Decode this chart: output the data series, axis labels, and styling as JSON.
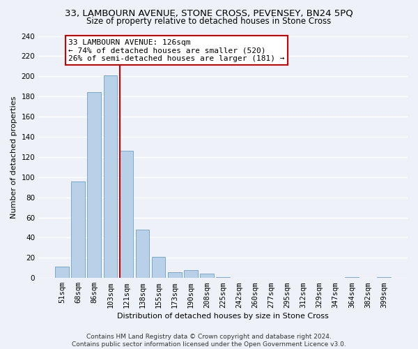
{
  "title": "33, LAMBOURN AVENUE, STONE CROSS, PEVENSEY, BN24 5PQ",
  "subtitle": "Size of property relative to detached houses in Stone Cross",
  "xlabel": "Distribution of detached houses by size in Stone Cross",
  "ylabel": "Number of detached properties",
  "bar_labels": [
    "51sqm",
    "68sqm",
    "86sqm",
    "103sqm",
    "121sqm",
    "138sqm",
    "155sqm",
    "173sqm",
    "190sqm",
    "208sqm",
    "225sqm",
    "242sqm",
    "260sqm",
    "277sqm",
    "295sqm",
    "312sqm",
    "329sqm",
    "347sqm",
    "364sqm",
    "382sqm",
    "399sqm"
  ],
  "bar_heights": [
    11,
    96,
    184,
    201,
    126,
    48,
    21,
    6,
    8,
    4,
    1,
    0,
    0,
    0,
    0,
    0,
    0,
    0,
    1,
    0,
    1
  ],
  "bar_color": "#b8d0e8",
  "bar_edge_color": "#7aaac8",
  "vline_color": "#cc0000",
  "vline_x_index": 4,
  "annotation_text": "33 LAMBOURN AVENUE: 126sqm\n← 74% of detached houses are smaller (520)\n26% of semi-detached houses are larger (181) →",
  "annotation_box_color": "#ffffff",
  "annotation_box_edge": "#cc0000",
  "ylim": [
    0,
    240
  ],
  "yticks": [
    0,
    20,
    40,
    60,
    80,
    100,
    120,
    140,
    160,
    180,
    200,
    220,
    240
  ],
  "footer_text": "Contains HM Land Registry data © Crown copyright and database right 2024.\nContains public sector information licensed under the Open Government Licence v3.0.",
  "background_color": "#eef2f8",
  "grid_color": "#ffffff",
  "title_fontsize": 9.5,
  "subtitle_fontsize": 8.5,
  "axis_label_fontsize": 8,
  "tick_fontsize": 7.5,
  "annotation_fontsize": 8,
  "footer_fontsize": 6.5
}
